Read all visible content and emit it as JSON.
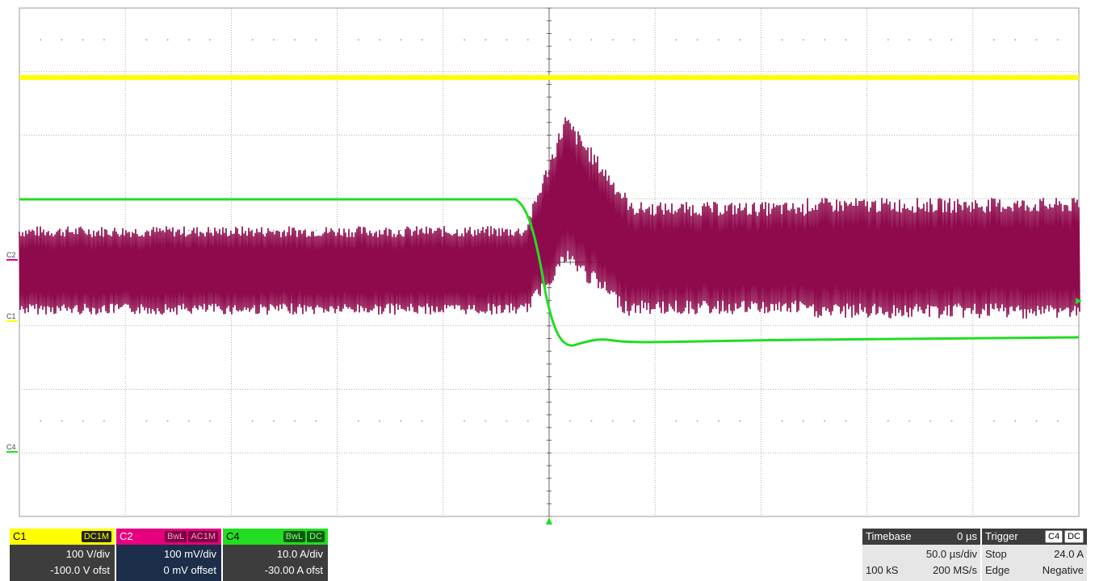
{
  "grid": {
    "hdiv": 10,
    "vdiv": 8,
    "background": "#ffffff",
    "grid_color": "#9a9a9a"
  },
  "colors": {
    "c1": "#ffff00",
    "c2": "#e6007e",
    "c2_trace": "#8e0a4c",
    "c4": "#22dd22"
  },
  "markers": {
    "c2": "C2",
    "c1": "C1",
    "c4": "C4"
  },
  "channels": [
    {
      "name": "C1",
      "badges": [
        "DC1M"
      ],
      "vdiv": "100 V/div",
      "offset": "-100.0 V ofst"
    },
    {
      "name": "C2",
      "badges": [
        "BwL",
        "AC1M"
      ],
      "vdiv": "100 mV/div",
      "offset": "0 mV offset"
    },
    {
      "name": "C4",
      "badges": [
        "BwL",
        "DC"
      ],
      "vdiv": "10.0 A/div",
      "offset": "-30.00 A ofst"
    }
  ],
  "timebase": {
    "label": "Timebase",
    "delay": "0 µs",
    "tdiv": "50.0 µs/div",
    "samples": "100 kS",
    "rate": "200 MS/s"
  },
  "trigger": {
    "label": "Trigger",
    "source": "C4",
    "coupling": "DC",
    "mode": "Stop",
    "level": "24.0 A",
    "type": "Edge",
    "slope": "Negative"
  }
}
